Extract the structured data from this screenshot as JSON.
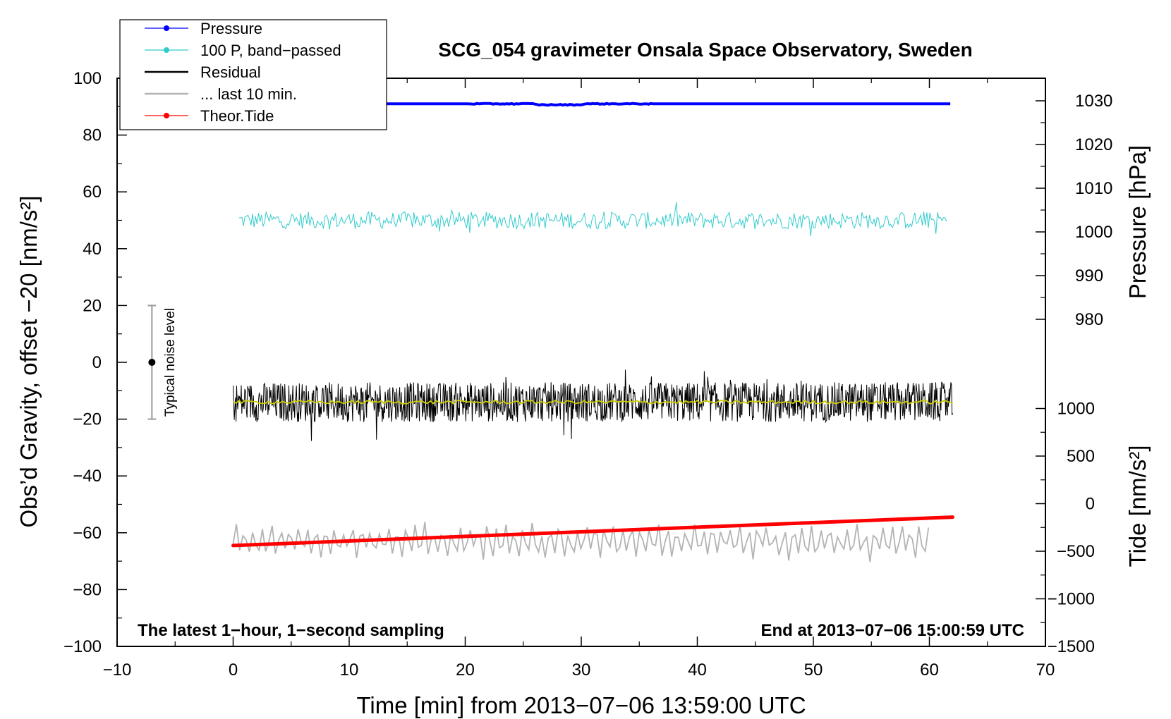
{
  "chart_data": {
    "type": "line",
    "title": "SCG_054 gravimeter Onsala Space Observatory, Sweden",
    "xlabel": "Time [min] from 2013−07−06 13:59:00 UTC",
    "ylabel_left": "Obs’d Gravity, offset −20 [nm/s²]",
    "ylabel_right_upper": "Pressure [hPa]",
    "ylabel_right_lower": "Tide [nm/s²]",
    "xlim": [
      -10,
      70
    ],
    "ylim": [
      -100,
      100
    ],
    "x_ticks": [
      "−10",
      "0",
      "10",
      "20",
      "30",
      "40",
      "50",
      "60",
      "70"
    ],
    "y_ticks_left": [
      "−100",
      "−80",
      "−60",
      "−40",
      "−20",
      "0",
      "20",
      "40",
      "60",
      "80",
      "100"
    ],
    "y_ticks_pressure": [
      "980",
      "990",
      "1000",
      "1010",
      "1020",
      "1030"
    ],
    "y_ticks_tide": [
      "−1500",
      "−1000",
      "−500",
      "0",
      "500",
      "1000"
    ],
    "legend": [
      {
        "label": "Pressure",
        "color": "#0000ff",
        "marker": true
      },
      {
        "label": "100 P, band−passed",
        "color": "#33cccc",
        "marker": true
      },
      {
        "label": "Residual",
        "color": "#000000",
        "marker": false
      },
      {
        "label": "... last 10 min.",
        "color": "#b3b3b3",
        "marker": false
      },
      {
        "label": "Theor.Tide",
        "color": "#ff0000",
        "marker": true
      }
    ],
    "annotations": {
      "left": "The latest 1−hour, 1−second sampling",
      "right": "End at 2013−07−06 15:00:59 UTC",
      "noise": "Typical noise level"
    },
    "noise_bar": {
      "x": -7,
      "y_center": 0,
      "y_range": [
        -20,
        20
      ]
    },
    "series": [
      {
        "name": "Pressure",
        "color": "#0000ff",
        "x_range": [
          0,
          62
        ],
        "y_plot": 91,
        "pressure_hPa": 1030
      },
      {
        "name": "100 P, band−passed",
        "color": "#33cccc",
        "x_range": [
          0.5,
          61.5
        ],
        "y_center": 50,
        "amplitude": 3
      },
      {
        "name": "Residual",
        "color": "#000000",
        "x_range": [
          0,
          62
        ],
        "y_center": -14,
        "amplitude": 7
      },
      {
        "name": "Residual (smoothed)",
        "color": "#cccc00",
        "x_range": [
          0,
          62
        ],
        "y_center": -14,
        "amplitude": 0.6
      },
      {
        "name": "... last 10 min.",
        "color": "#b3b3b3",
        "x_range": [
          0,
          60
        ],
        "y_center": -63,
        "amplitude": 5
      },
      {
        "name": "Theor.Tide",
        "color": "#ff0000",
        "x": [
          0,
          62
        ],
        "y": [
          -64.5,
          -54.5
        ]
      }
    ]
  }
}
